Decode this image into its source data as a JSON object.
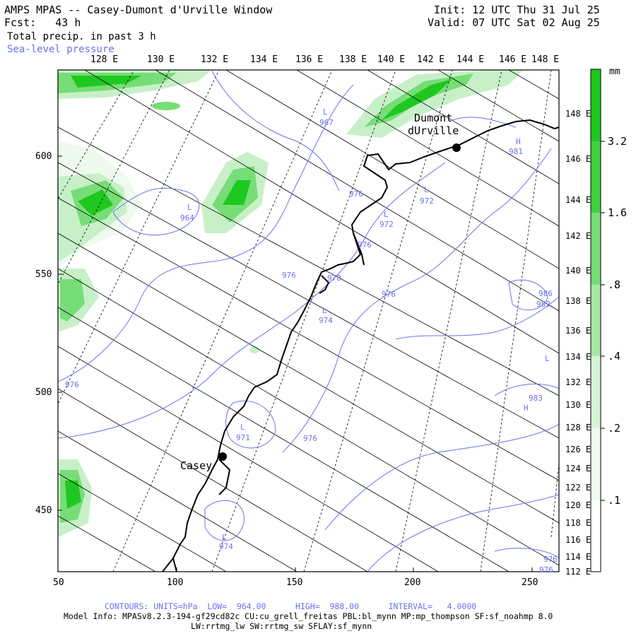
{
  "header": {
    "title": "AMPS MPAS -- Casey-Dumont d'Urville Window",
    "fcst_label": "Fcst:",
    "fcst_value": "43 h",
    "init": "Init: 12 UTC Thu 31 Jul 25",
    "valid": "Valid: 07 UTC Sat 02 Aug 25",
    "field": "Total precip. in past 3 h",
    "overlay": "Sea-level pressure"
  },
  "colors": {
    "contour": "#6a72ee",
    "precip_dark": "#1fc81f",
    "precip_mid": "#77dd77",
    "precip_light": "#c8f0c8",
    "precip_pale": "#eefaee",
    "grid": "#000000"
  },
  "map": {
    "top_lon_labels": [
      "128 E",
      "130 E",
      "132 E",
      "134 E",
      "136 E",
      "138 E",
      "140 E",
      "142 E",
      "144 E",
      "146 E",
      "148 E"
    ],
    "right_lat_labels": [
      "148 E",
      "146 E",
      "144 E",
      "142 E",
      "140 E",
      "138 E",
      "136 E",
      "134 E",
      "132 E",
      "130 E",
      "128 E",
      "126 E",
      "124 E",
      "122 E",
      "120 E",
      "118 E",
      "116 E",
      "114 E",
      "112 E"
    ],
    "left_y_ticks": [
      "600",
      "550",
      "500",
      "450"
    ],
    "bottom_x_ticks": [
      "50",
      "100",
      "150",
      "200",
      "250"
    ],
    "stations": [
      {
        "name": "Casey"
      },
      {
        "name": "Dumont\ndUrville"
      }
    ],
    "contour_labels": [
      "L",
      "967",
      "976",
      "L",
      "972",
      "L",
      "972",
      "976",
      "L",
      "964",
      "976",
      "976",
      "978",
      "L",
      "974",
      "976",
      "L",
      "971",
      "976",
      "974",
      "L",
      "981",
      "H",
      "986",
      "982",
      "L",
      "983",
      "H",
      "976",
      "976"
    ]
  },
  "colorbar": {
    "unit": "mm",
    "levels": [
      "3.2",
      "1.6",
      ".8",
      ".4",
      ".2",
      ".1"
    ]
  },
  "footer": {
    "contours": "CONTOURS: UNITS=hPa  LOW=  964.00      HIGH=  988.00      INTERVAL=   4.0000",
    "model_info": "Model Info: MPASv8.2.3-194-gf29cd82c CU:cu_grell_freitas PBL:bl_mynn MP:mp_thompson SF:sf_noahmp 8.0",
    "model_info2": "LW:rrtmg_lw SW:rrtmg_sw SFLAY:sf_mynn"
  }
}
